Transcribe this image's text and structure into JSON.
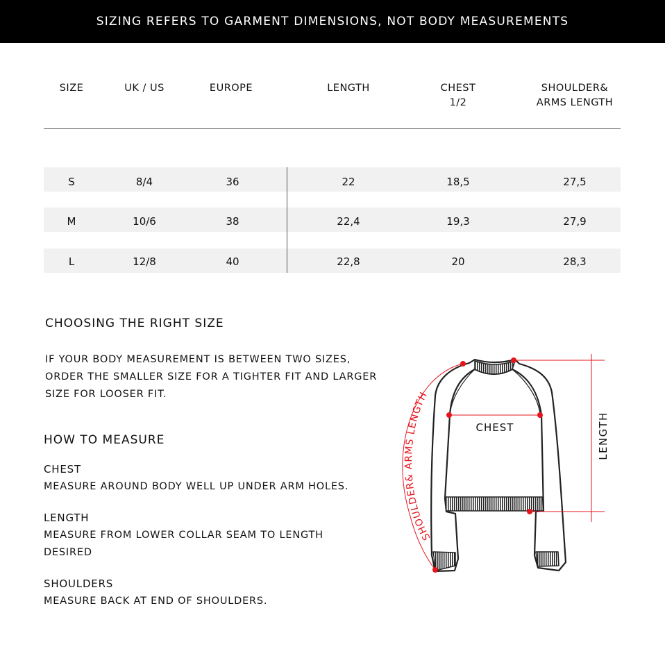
{
  "banner": "SIZING REFERS TO GARMENT DIMENSIONS, NOT BODY MEASUREMENTS",
  "table": {
    "headers": [
      "SIZE",
      "UK / US",
      "EUROPE",
      "LENGTH",
      "CHEST\n1/2",
      "SHOULDER&\nARMS LENGTH"
    ],
    "rows": [
      [
        "S",
        "8/4",
        "36",
        "22",
        "18,5",
        "27,5"
      ],
      [
        "M",
        "10/6",
        "38",
        "22,4",
        "19,3",
        "27,9"
      ],
      [
        "L",
        "12/8",
        "40",
        "22,8",
        "20",
        "28,3"
      ]
    ]
  },
  "choosing": {
    "title": "CHOOSING THE RIGHT SIZE",
    "text": "IF YOUR BODY MEASUREMENT IS BETWEEN TWO SIZES, ORDER THE SMALLER SIZE FOR A TIGHTER FIT AND LARGER SIZE FOR LOOSER FIT."
  },
  "measure": {
    "title": "HOW TO MEASURE",
    "items": [
      {
        "label": "CHEST",
        "text": "MEASURE AROUND BODY WELL UP UNDER ARM HOLES."
      },
      {
        "label": "LENGTH",
        "text": "MEASURE FROM LOWER COLLAR SEAM TO LENGTH DESIRED"
      },
      {
        "label": "SHOULDERS",
        "text": "MEASURE BACK AT END OF SHOULDERS."
      }
    ]
  },
  "diagram": {
    "chest": "CHEST",
    "length": "LENGTH",
    "shoulder": "SHOULDER& ARMS LENGTH",
    "accent": "#e8141c"
  }
}
